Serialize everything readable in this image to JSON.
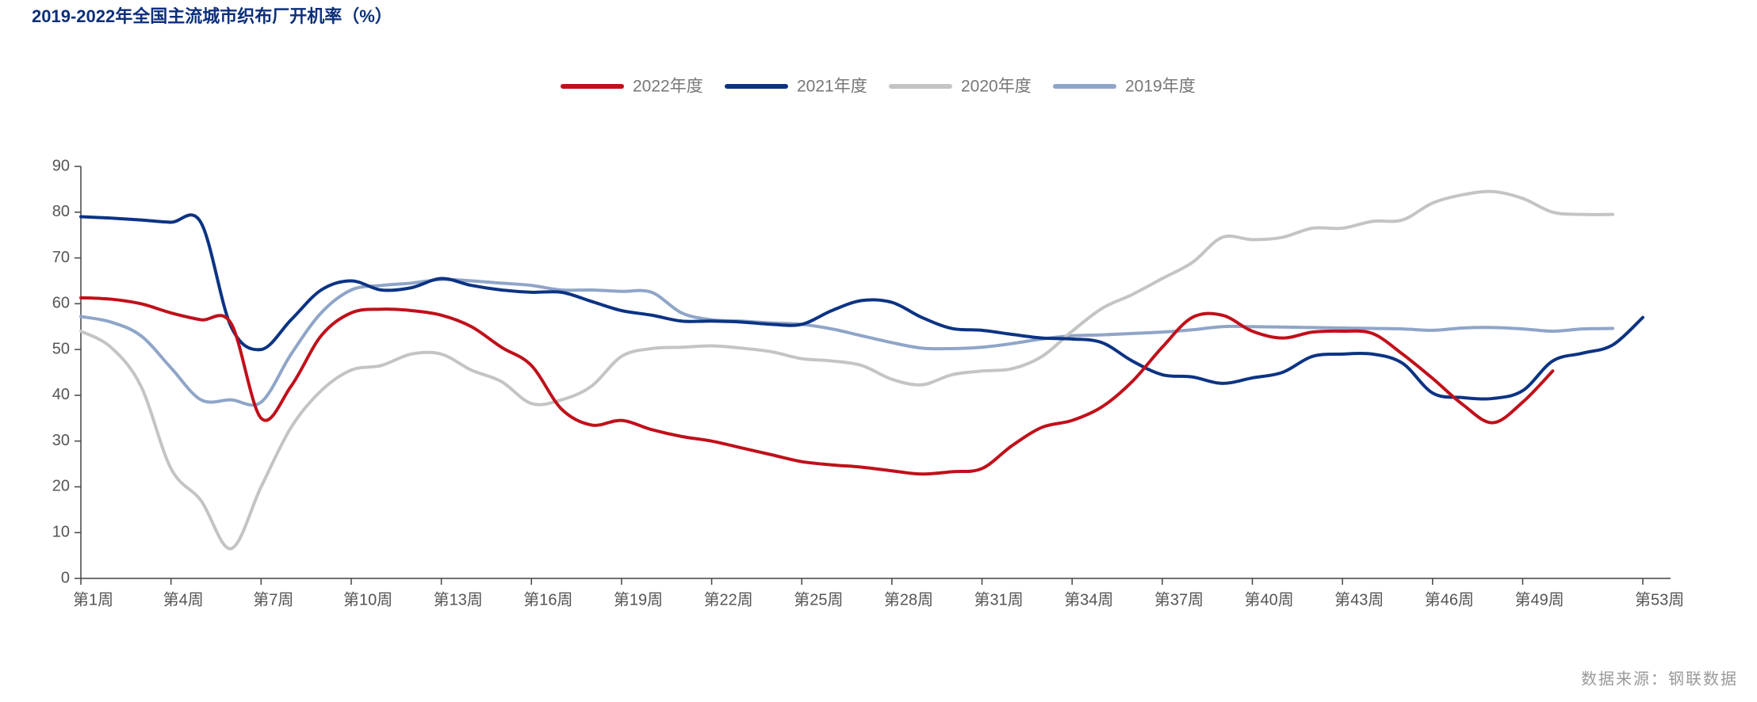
{
  "chart_data": {
    "type": "line",
    "title": "2019-2022年全国主流城市织布厂开机率（%）",
    "source": "数据来源：钢联数据",
    "categories": [
      "第1周",
      null,
      null,
      "第4周",
      null,
      null,
      "第7周",
      null,
      null,
      "第10周",
      null,
      null,
      "第13周",
      null,
      null,
      "第16周",
      null,
      null,
      "第19周",
      null,
      null,
      "第22周",
      null,
      null,
      "第25周",
      null,
      null,
      "第28周",
      null,
      null,
      "第31周",
      null,
      null,
      "第34周",
      null,
      null,
      "第37周",
      null,
      null,
      "第40周",
      null,
      null,
      "第43周",
      null,
      null,
      "第46周",
      null,
      null,
      "第49周",
      null,
      null,
      null,
      "第53周"
    ],
    "ylim": [
      0,
      90
    ],
    "yticks": [
      0,
      10,
      20,
      30,
      40,
      50,
      60,
      70,
      80,
      90
    ],
    "grid": false,
    "legend": "top",
    "smooth": true,
    "series": [
      {
        "name": "2022年度",
        "color": "#c0101a",
        "values": [
          61.3,
          61,
          60,
          58,
          56.5,
          55.7,
          35,
          42,
          53,
          58,
          58.8,
          58.5,
          57.5,
          55,
          50.5,
          46.5,
          37,
          33.5,
          34.5,
          32.5,
          31,
          30,
          28.5,
          27,
          25.5,
          24.8,
          24.3,
          23.5,
          22.8,
          23.3,
          24,
          29,
          33,
          34.5,
          37.5,
          43,
          50.5,
          57,
          57.5,
          54,
          52.5,
          53.8,
          54,
          53.5,
          49,
          43.7,
          38,
          34,
          38.5,
          45.3,
          null,
          null,
          null
        ]
      },
      {
        "name": "2021年度",
        "color": "#0c3383",
        "values": [
          79,
          78.7,
          78.3,
          77.8,
          77.7,
          55,
          50,
          56.5,
          63,
          65,
          63,
          63.5,
          65.5,
          64,
          63,
          62.5,
          62.5,
          60.5,
          58.5,
          57.5,
          56.2,
          56.2,
          56,
          55.5,
          55.5,
          58.5,
          60.7,
          60.3,
          57,
          54.6,
          54.2,
          53.3,
          52.5,
          52.3,
          51.5,
          47.5,
          44.5,
          44,
          42.6,
          43.8,
          45,
          48.5,
          49,
          49,
          47,
          40.5,
          39.5,
          39.3,
          41,
          47.5,
          49.2,
          51,
          57
        ]
      },
      {
        "name": "2020年度",
        "color": "#c4c4c4",
        "values": [
          54,
          50.5,
          42,
          24,
          17,
          6.5,
          20,
          33,
          41,
          45.5,
          46.5,
          49,
          49,
          45.5,
          43,
          38.2,
          39,
          42,
          48.5,
          50.2,
          50.5,
          50.8,
          50.3,
          49.5,
          48,
          47.5,
          46.5,
          43.5,
          42.3,
          44.5,
          45.3,
          45.8,
          48.5,
          54,
          59,
          62,
          65.5,
          69,
          74.5,
          74,
          74.5,
          76.5,
          76.5,
          78,
          78.3,
          82,
          83.8,
          84.5,
          83,
          80,
          79.5,
          79.5,
          null
        ]
      },
      {
        "name": "2019年度",
        "color": "#8fa5c8",
        "values": [
          57.2,
          56,
          53,
          46,
          39,
          39,
          38.5,
          49,
          58,
          63,
          64,
          64.5,
          65.3,
          65,
          64.5,
          64,
          63,
          63,
          62.7,
          62.5,
          58,
          56.5,
          56.2,
          55.8,
          55.5,
          54.5,
          53,
          51.5,
          50.3,
          50.2,
          50.5,
          51.3,
          52.3,
          53,
          53.2,
          53.5,
          53.8,
          54.3,
          55,
          55,
          54.9,
          54.8,
          54.7,
          54.6,
          54.5,
          54.2,
          54.7,
          54.8,
          54.5,
          54,
          54.5,
          54.6,
          null
        ]
      }
    ]
  }
}
